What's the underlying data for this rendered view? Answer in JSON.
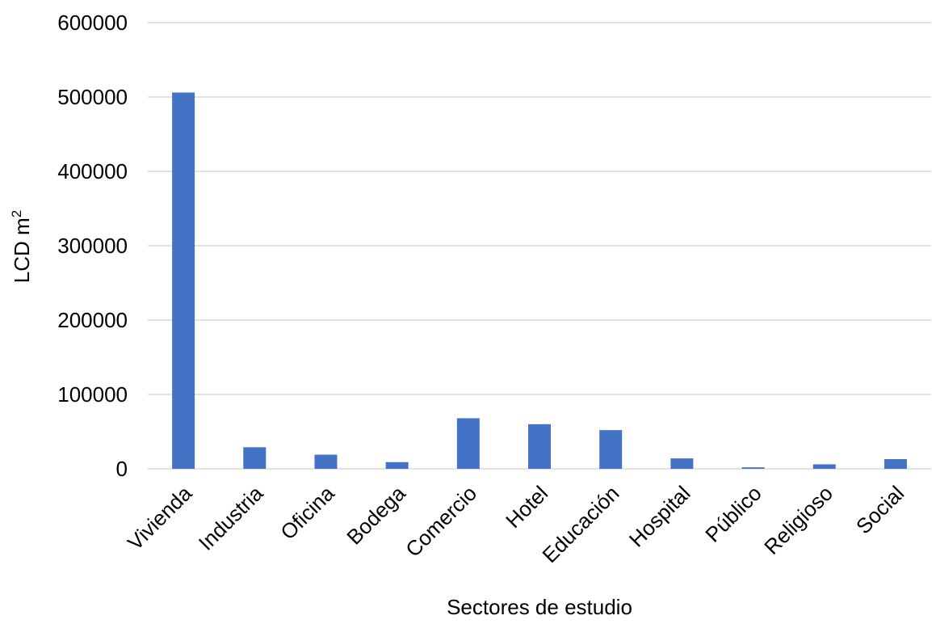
{
  "chart_data": {
    "type": "bar",
    "categories": [
      "Vivienda",
      "Industria",
      "Oficina",
      "Bodega",
      "Comercio",
      "Hotel",
      "Educación",
      "Hospital",
      "Público",
      "Religioso",
      "Social"
    ],
    "values": [
      506000,
      29000,
      19000,
      9000,
      68000,
      60000,
      52000,
      14000,
      2000,
      6000,
      13000
    ],
    "xlabel": "Sectores de estudio",
    "ylabel": "LCD m",
    "ylabel_superscript": "2",
    "ylim": [
      0,
      600000
    ],
    "yticks": [
      "0",
      "100000",
      "200000",
      "300000",
      "400000",
      "500000",
      "600000"
    ],
    "grid": "horizontal",
    "colors": {
      "bar": "#4472c4",
      "grid": "#d9d9d9"
    }
  }
}
